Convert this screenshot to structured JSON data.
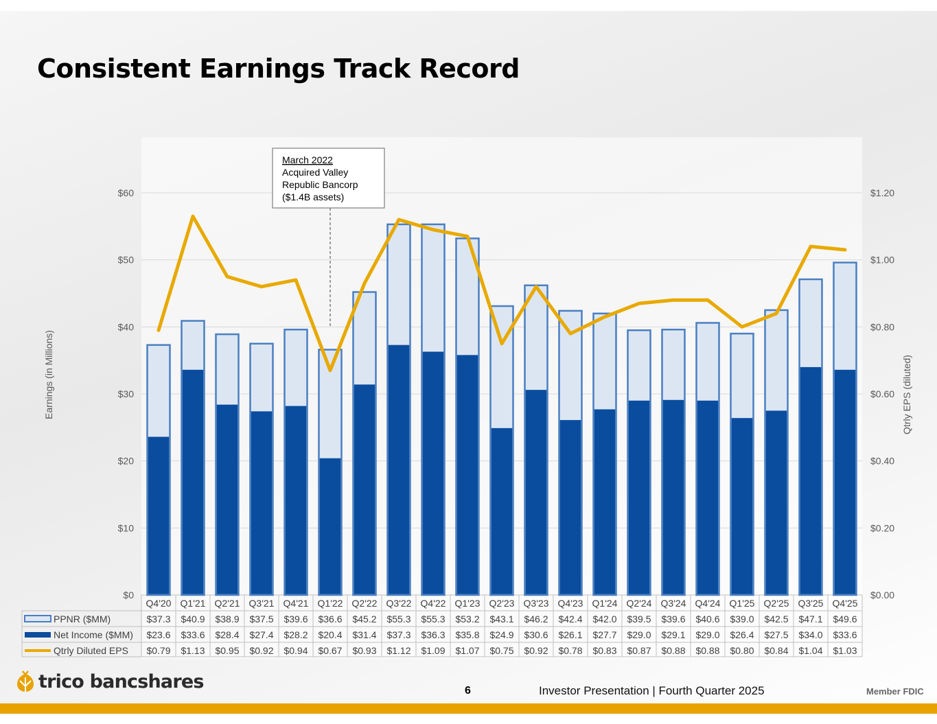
{
  "title": "Consistent Earnings Track Record",
  "footer": {
    "logo_text": "trico bancshares",
    "page_number": "6",
    "presentation": "Investor Presentation | Fourth Quarter 2025",
    "member": "Member FDIC"
  },
  "colors": {
    "ppnr_fill": "#dce6f3",
    "ppnr_stroke": "#4a7fc1",
    "net_income": "#0a4d9e",
    "eps_line": "#e8a900",
    "footer_bar": "#e8a200"
  },
  "chart_data": {
    "type": "bar",
    "categories": [
      "Q4'20",
      "Q1'21",
      "Q2'21",
      "Q3'21",
      "Q4'21",
      "Q1'22",
      "Q2'22",
      "Q3'22",
      "Q4'22",
      "Q1'23",
      "Q2'23",
      "Q3'23",
      "Q4'23",
      "Q1'24",
      "Q2'24",
      "Q3'24",
      "Q4'24",
      "Q1'25",
      "Q2'25",
      "Q3'25",
      "Q4'25"
    ],
    "series": [
      {
        "name": "PPNR ($MM)",
        "type": "bar",
        "axis": "left",
        "values": [
          37.3,
          40.9,
          38.9,
          37.5,
          39.6,
          36.6,
          45.2,
          55.3,
          55.3,
          53.2,
          43.1,
          46.2,
          42.4,
          42.0,
          39.5,
          39.6,
          40.6,
          39.0,
          42.5,
          47.1,
          49.6
        ],
        "labels": [
          "$37.3",
          "$40.9",
          "$38.9",
          "$37.5",
          "$39.6",
          "$36.6",
          "$45.2",
          "$55.3",
          "$55.3",
          "$53.2",
          "$43.1",
          "$46.2",
          "$42.4",
          "$42.0",
          "$39.5",
          "$39.6",
          "$40.6",
          "$39.0",
          "$42.5",
          "$47.1",
          "$49.6"
        ]
      },
      {
        "name": "Net Income ($MM)",
        "type": "bar",
        "axis": "left",
        "values": [
          23.6,
          33.6,
          28.4,
          27.4,
          28.2,
          20.4,
          31.4,
          37.3,
          36.3,
          35.8,
          24.9,
          30.6,
          26.1,
          27.7,
          29.0,
          29.1,
          29.0,
          26.4,
          27.5,
          34.0,
          33.6
        ],
        "labels": [
          "$23.6",
          "$33.6",
          "$28.4",
          "$27.4",
          "$28.2",
          "$20.4",
          "$31.4",
          "$37.3",
          "$36.3",
          "$35.8",
          "$24.9",
          "$30.6",
          "$26.1",
          "$27.7",
          "$29.0",
          "$29.1",
          "$29.0",
          "$26.4",
          "$27.5",
          "$34.0",
          "$33.6"
        ]
      },
      {
        "name": "Qtrly Diluted EPS",
        "type": "line",
        "axis": "right",
        "values": [
          0.79,
          1.13,
          0.95,
          0.92,
          0.94,
          0.67,
          0.93,
          1.12,
          1.09,
          1.07,
          0.75,
          0.92,
          0.78,
          0.83,
          0.87,
          0.88,
          0.88,
          0.8,
          0.84,
          1.04,
          1.03
        ],
        "labels": [
          "$0.79",
          "$1.13",
          "$0.95",
          "$0.92",
          "$0.94",
          "$0.67",
          "$0.93",
          "$1.12",
          "$1.09",
          "$1.07",
          "$0.75",
          "$0.92",
          "$0.78",
          "$0.83",
          "$0.87",
          "$0.88",
          "$0.88",
          "$0.80",
          "$0.84",
          "$1.04",
          "$1.03"
        ]
      }
    ],
    "ylabel": "Earnings (in Millions)",
    "y2label": "Qtrly EPS (diluted)",
    "ylim": [
      0,
      60
    ],
    "y2lim": [
      0,
      1.2
    ],
    "yticks": [
      "$0",
      "$10",
      "$20",
      "$30",
      "$40",
      "$50",
      "$60"
    ],
    "y2ticks": [
      "$0.00",
      "$0.20",
      "$0.40",
      "$0.60",
      "$0.80",
      "$1.00",
      "$1.20"
    ],
    "grid": true,
    "legend": "data-table",
    "annotation": {
      "category": "Q1'22",
      "heading": "March 2022",
      "lines": [
        "Acquired Valley",
        "Republic Bancorp",
        "($1.4B assets)"
      ]
    }
  }
}
